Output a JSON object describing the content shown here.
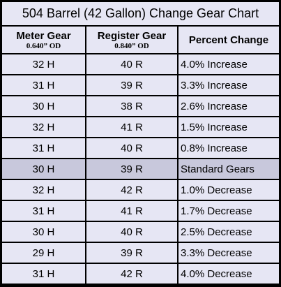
{
  "title": "504 Barrel (42 Gallon) Change Gear Chart",
  "headers": [
    {
      "main": "Meter Gear",
      "sub": "0.640” OD"
    },
    {
      "main": "Register Gear",
      "sub": "0.840” OD"
    },
    {
      "main": "Percent Change",
      "sub": ""
    }
  ],
  "rows": [
    {
      "meter": "32 H",
      "register": "40 R",
      "change": "4.0% Increase"
    },
    {
      "meter": "31 H",
      "register": "39 R",
      "change": "3.3% Increase"
    },
    {
      "meter": "30 H",
      "register": "38 R",
      "change": "2.6% Increase"
    },
    {
      "meter": "32 H",
      "register": "41 R",
      "change": "1.5% Increase"
    },
    {
      "meter": "31 H",
      "register": "40 R",
      "change": "0.8% Increase"
    },
    {
      "meter": "30 H",
      "register": "39 R",
      "change": "Standard Gears"
    },
    {
      "meter": "32 H",
      "register": "42 R",
      "change": "1.0% Decrease"
    },
    {
      "meter": "31 H",
      "register": "41 R",
      "change": "1.7% Decrease"
    },
    {
      "meter": "30 H",
      "register": "40 R",
      "change": "2.5% Decrease"
    },
    {
      "meter": "29 H",
      "register": "39 R",
      "change": "3.3% Decrease"
    },
    {
      "meter": "31 H",
      "register": "42 R",
      "change": "4.0% Decrease"
    }
  ],
  "colors": {
    "cell_bg": "#e6e6f4",
    "standard_row_bg": "#c8c8dc",
    "border": "#000000"
  }
}
